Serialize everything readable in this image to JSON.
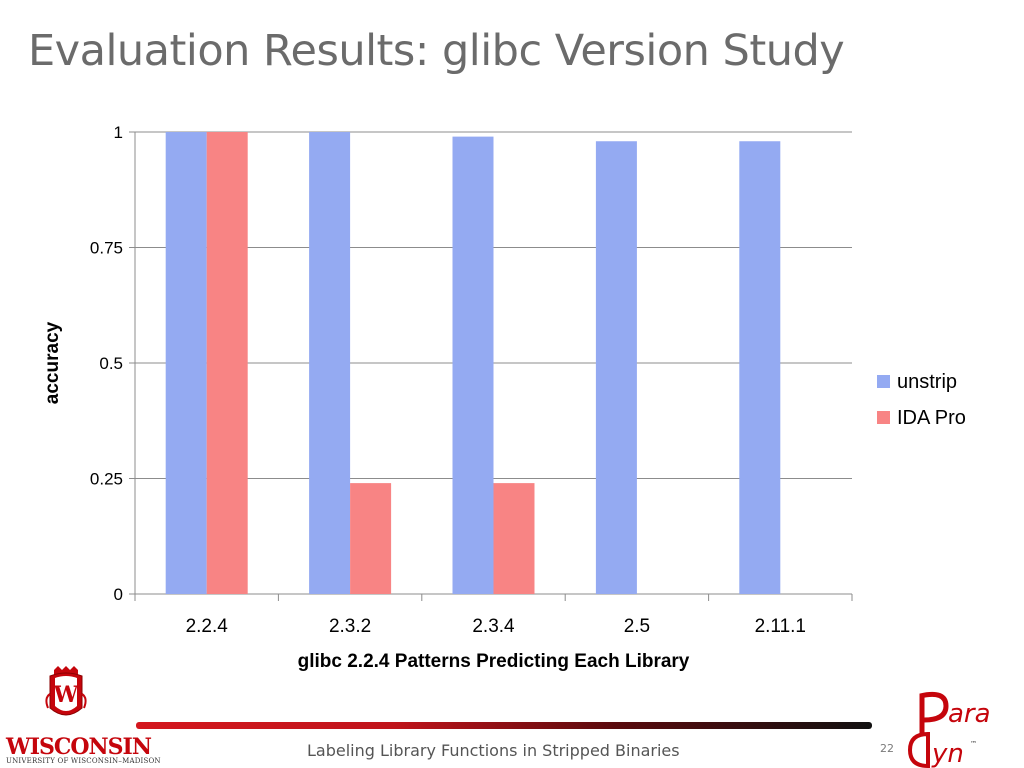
{
  "slide": {
    "title": "Evaluation Results: glibc Version Study",
    "footer_text": "Labeling Library Functions in Stripped Binaries",
    "slide_number": "22"
  },
  "logos": {
    "uw_wordmark": "WISCONSIN",
    "uw_subtitle": "UNIVERSITY OF WISCONSIN–MADISON",
    "uw_crest_letter": "W",
    "paradyn_top": "ara",
    "paradyn_bottom": "yn",
    "paradyn_tm": "™"
  },
  "colors": {
    "unstrip": "#94aaf2",
    "ida_pro": "#f88484",
    "footer_red": "#d4171e",
    "uw_red": "#c5050c"
  },
  "chart_data": {
    "type": "bar",
    "title": "",
    "xlabel": "glibc 2.2.4 Patterns Predicting Each Library",
    "ylabel": "accuracy",
    "categories": [
      "2.2.4",
      "2.3.2",
      "2.3.4",
      "2.5",
      "2.11.1"
    ],
    "series": [
      {
        "name": "unstrip",
        "values": [
          1.0,
          1.0,
          0.99,
          0.98,
          0.98
        ]
      },
      {
        "name": "IDA Pro",
        "values": [
          1.0,
          0.24,
          0.24,
          null,
          null
        ]
      }
    ],
    "ylim": [
      0,
      1
    ],
    "yticks": [
      0,
      0.25,
      0.5,
      0.75,
      1
    ],
    "ytick_labels": [
      "0",
      "0.25",
      "0.5",
      "0.75",
      "1"
    ],
    "grid": true,
    "legend_position": "right"
  }
}
